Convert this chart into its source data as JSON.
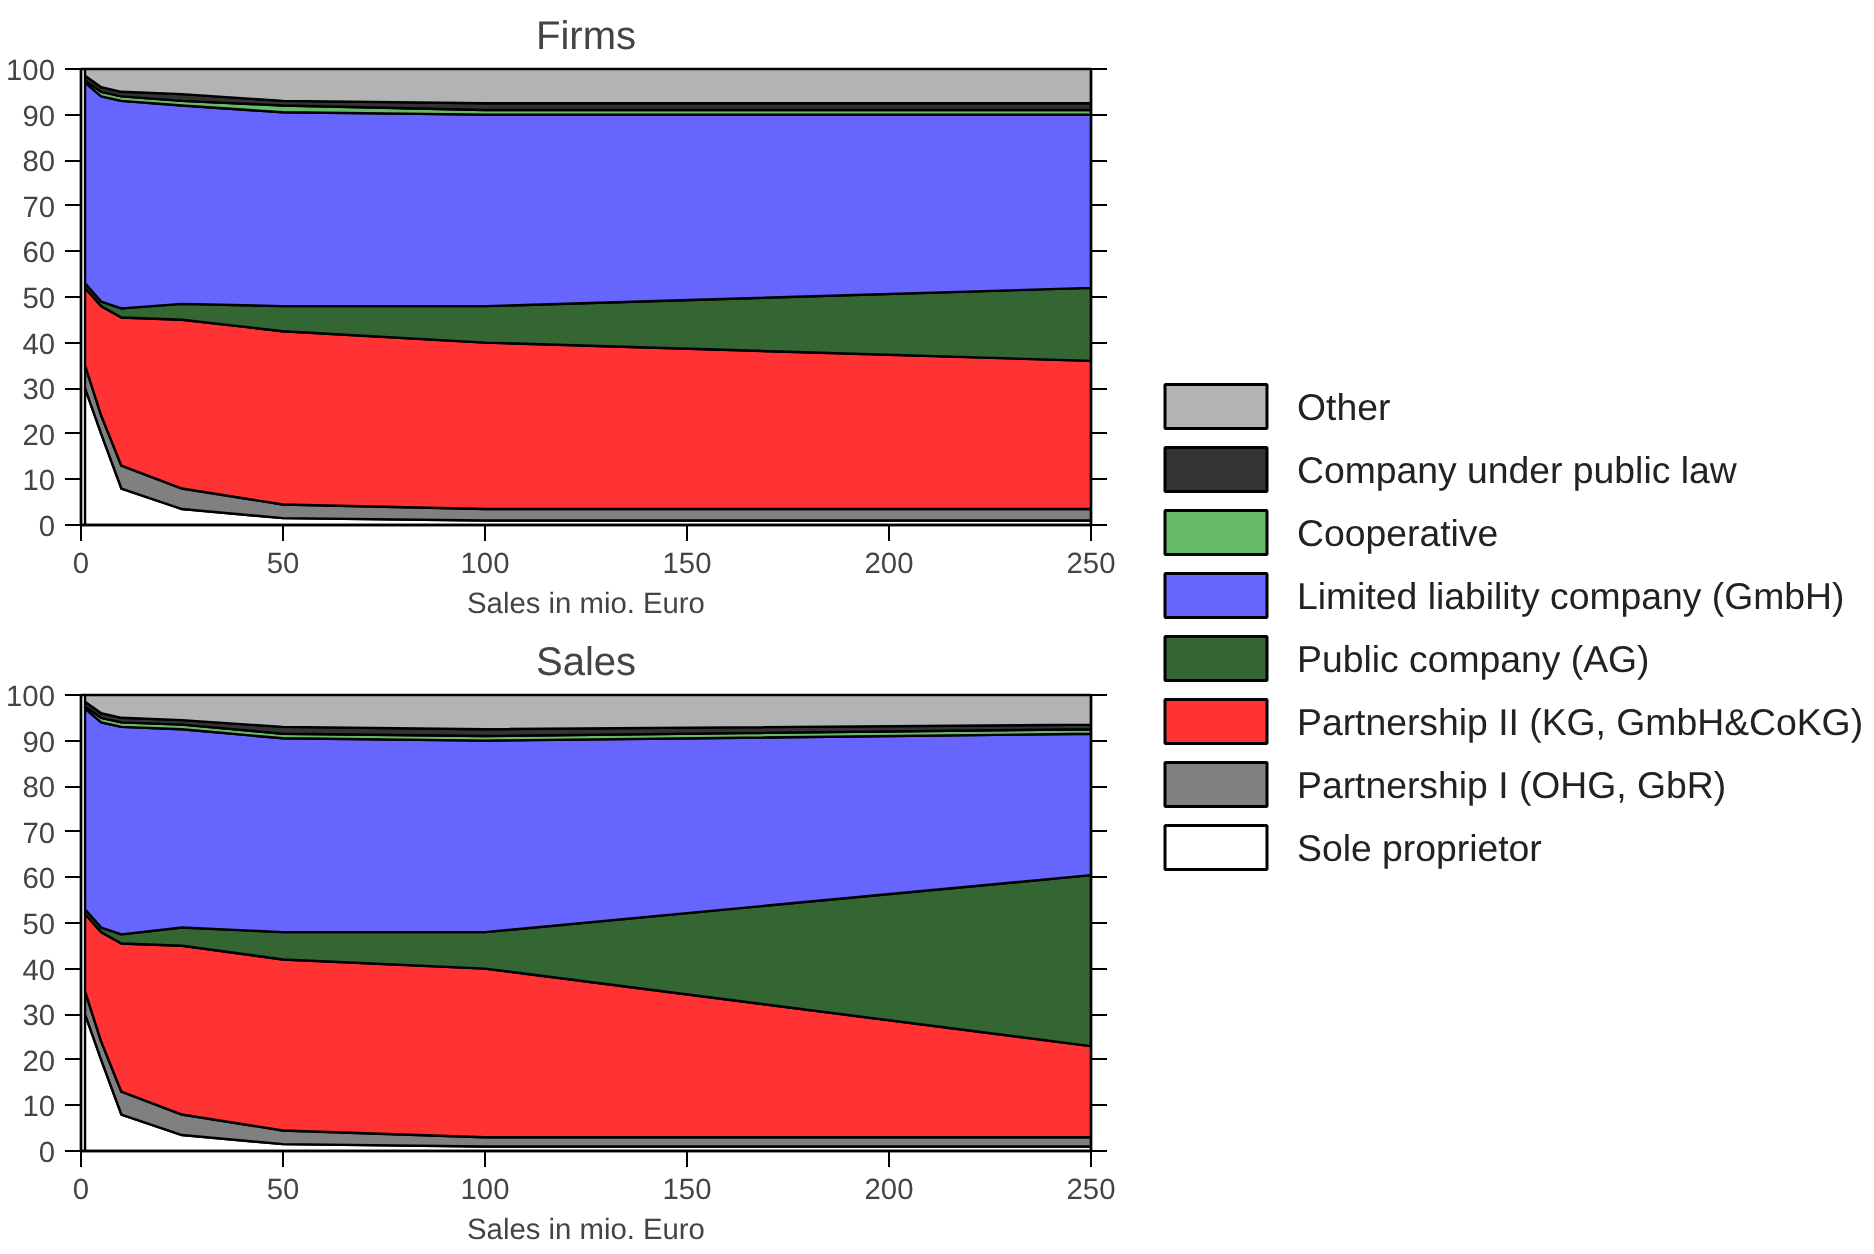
{
  "chart_data": [
    {
      "type": "area",
      "stacked": true,
      "title": "Firms",
      "xlabel": "Sales in mio. Euro",
      "x": [
        1,
        5,
        10,
        25,
        50,
        100,
        250
      ],
      "xlim": [
        0,
        250
      ],
      "xticks": [
        0,
        50,
        100,
        150,
        200,
        250
      ],
      "ylim": [
        0,
        100
      ],
      "yticks": [
        0,
        10,
        20,
        30,
        40,
        50,
        60,
        70,
        80,
        90,
        100
      ],
      "grid": false,
      "legend": "right",
      "series": [
        {
          "name": "Sole proprietor",
          "color": "#ffffff",
          "values": [
            30,
            20,
            8,
            3.5,
            1.5,
            1,
            1
          ]
        },
        {
          "name": "Partnership I (OHG, GbR)",
          "color": "#808080",
          "values": [
            5,
            4,
            5,
            4.5,
            3,
            2.5,
            2.5
          ]
        },
        {
          "name": "Partnership II (KG, GmbH&CoKG)",
          "color": "#ff3333",
          "values": [
            17,
            24,
            32.5,
            37,
            38,
            36.5,
            32.5
          ]
        },
        {
          "name": "Public company (AG)",
          "color": "#336633",
          "values": [
            1,
            1,
            2,
            3.5,
            5.5,
            8,
            16
          ]
        },
        {
          "name": "Limited liability company (GmbH)",
          "color": "#6666ff",
          "values": [
            44,
            45,
            45.5,
            43.5,
            42.5,
            42,
            38
          ]
        },
        {
          "name": "Cooperative",
          "color": "#66bb66",
          "values": [
            0.5,
            1,
            1,
            1,
            1.5,
            1,
            1
          ]
        },
        {
          "name": "Company under public law",
          "color": "#333333",
          "values": [
            1,
            1,
            1,
            1.5,
            1,
            1.5,
            1.5
          ]
        },
        {
          "name": "Other",
          "color": "#b3b3b3",
          "values": [
            1.5,
            4,
            5,
            5.5,
            7,
            7.5,
            7.5
          ]
        }
      ]
    },
    {
      "type": "area",
      "stacked": true,
      "title": "Sales",
      "xlabel": "Sales in mio. Euro",
      "x": [
        1,
        5,
        10,
        25,
        50,
        100,
        250
      ],
      "xlim": [
        0,
        250
      ],
      "xticks": [
        0,
        50,
        100,
        150,
        200,
        250
      ],
      "ylim": [
        0,
        100
      ],
      "yticks": [
        0,
        10,
        20,
        30,
        40,
        50,
        60,
        70,
        80,
        90,
        100
      ],
      "grid": false,
      "series": [
        {
          "color": "#ffffff",
          "values": [
            30,
            20,
            8,
            3.5,
            1.5,
            1,
            1
          ]
        },
        {
          "color": "#808080",
          "values": [
            5,
            4,
            5,
            4.5,
            3,
            2,
            2
          ]
        },
        {
          "color": "#ff3333",
          "values": [
            17,
            24,
            32.5,
            37,
            37.5,
            37,
            20
          ]
        },
        {
          "color": "#336633",
          "values": [
            1,
            1,
            2,
            4,
            6,
            8,
            37.5
          ]
        },
        {
          "color": "#6666ff",
          "values": [
            44,
            45,
            45.5,
            43.5,
            42.5,
            42,
            31
          ]
        },
        {
          "color": "#66bb66",
          "values": [
            0.5,
            1,
            1,
            1,
            1,
            1,
            1
          ]
        },
        {
          "color": "#333333",
          "values": [
            1,
            1,
            1,
            1,
            1.5,
            1.5,
            1
          ]
        },
        {
          "color": "#b3b3b3",
          "values": [
            1.5,
            4,
            5,
            5.5,
            7,
            7.5,
            6.5
          ]
        }
      ]
    }
  ]
}
